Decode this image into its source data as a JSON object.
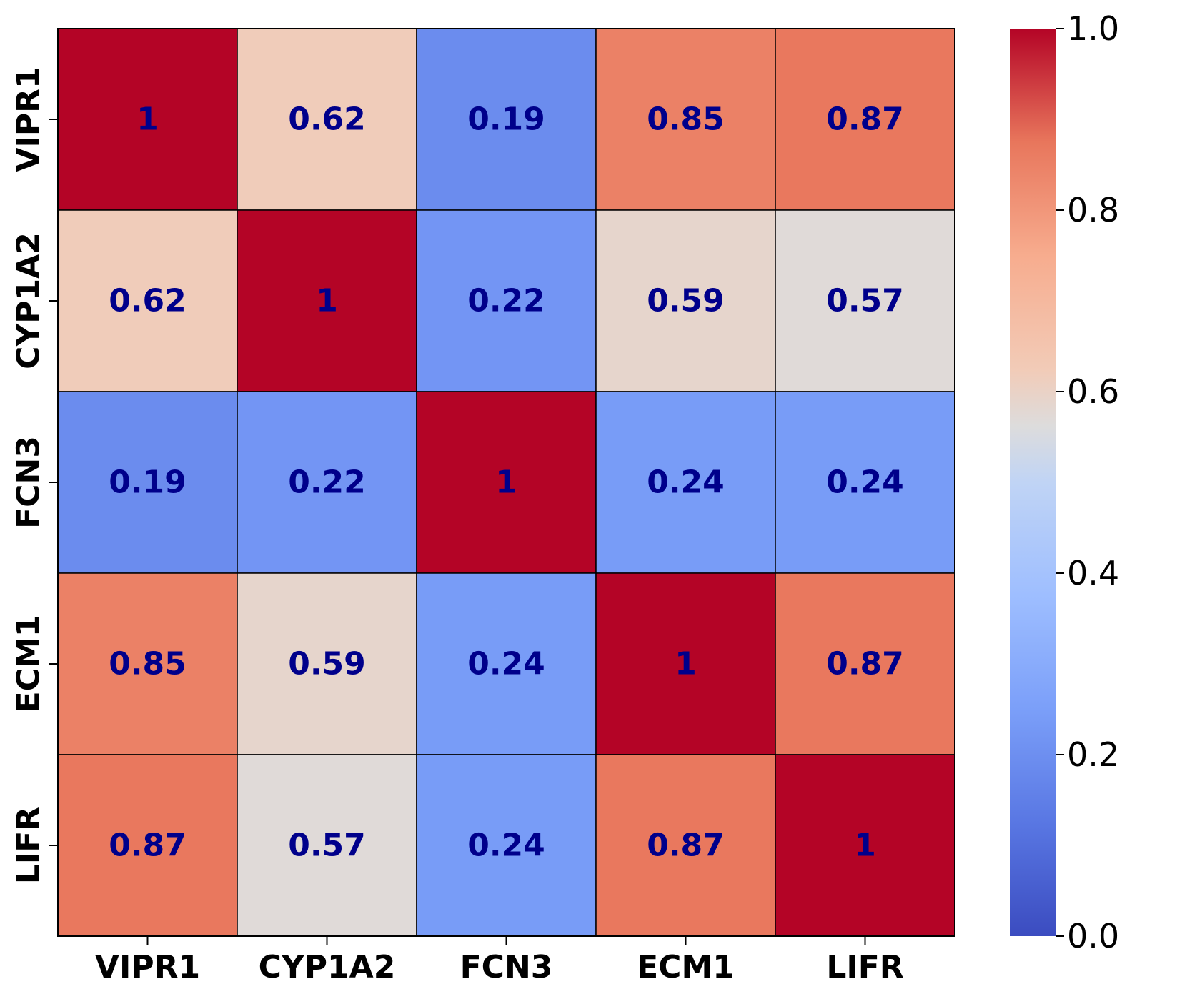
{
  "chart_data": {
    "type": "heatmap",
    "title": "",
    "xlabel": "",
    "ylabel": "",
    "x_categories": [
      "VIPR1",
      "CYP1A2",
      "FCN3",
      "ECM1",
      "LIFR"
    ],
    "y_categories": [
      "VIPR1",
      "CYP1A2",
      "FCN3",
      "ECM1",
      "LIFR"
    ],
    "values": [
      [
        1,
        0.62,
        0.19,
        0.85,
        0.87
      ],
      [
        0.62,
        1,
        0.22,
        0.59,
        0.57
      ],
      [
        0.19,
        0.22,
        1,
        0.24,
        0.24
      ],
      [
        0.85,
        0.59,
        0.24,
        1,
        0.87
      ],
      [
        0.87,
        0.57,
        0.24,
        0.87,
        1
      ]
    ],
    "labels": [
      [
        "1",
        "0.62",
        "0.19",
        "0.85",
        "0.87"
      ],
      [
        "0.62",
        "1",
        "0.22",
        "0.59",
        "0.57"
      ],
      [
        "0.19",
        "0.22",
        "1",
        "0.24",
        "0.24"
      ],
      [
        "0.85",
        "0.59",
        "0.24",
        "1",
        "0.87"
      ],
      [
        "0.87",
        "0.57",
        "0.24",
        "0.87",
        "1"
      ]
    ],
    "colormap": "coolwarm",
    "vmin": 0.0,
    "vmax": 1.0,
    "colorbar_ticks": [
      "0.0",
      "0.2",
      "0.4",
      "0.6",
      "0.8",
      "1.0"
    ],
    "colorbar_tick_values": [
      0.0,
      0.2,
      0.4,
      0.6,
      0.8,
      1.0
    ],
    "annotation_color": "#00008b",
    "gridline_color": "#000000"
  }
}
